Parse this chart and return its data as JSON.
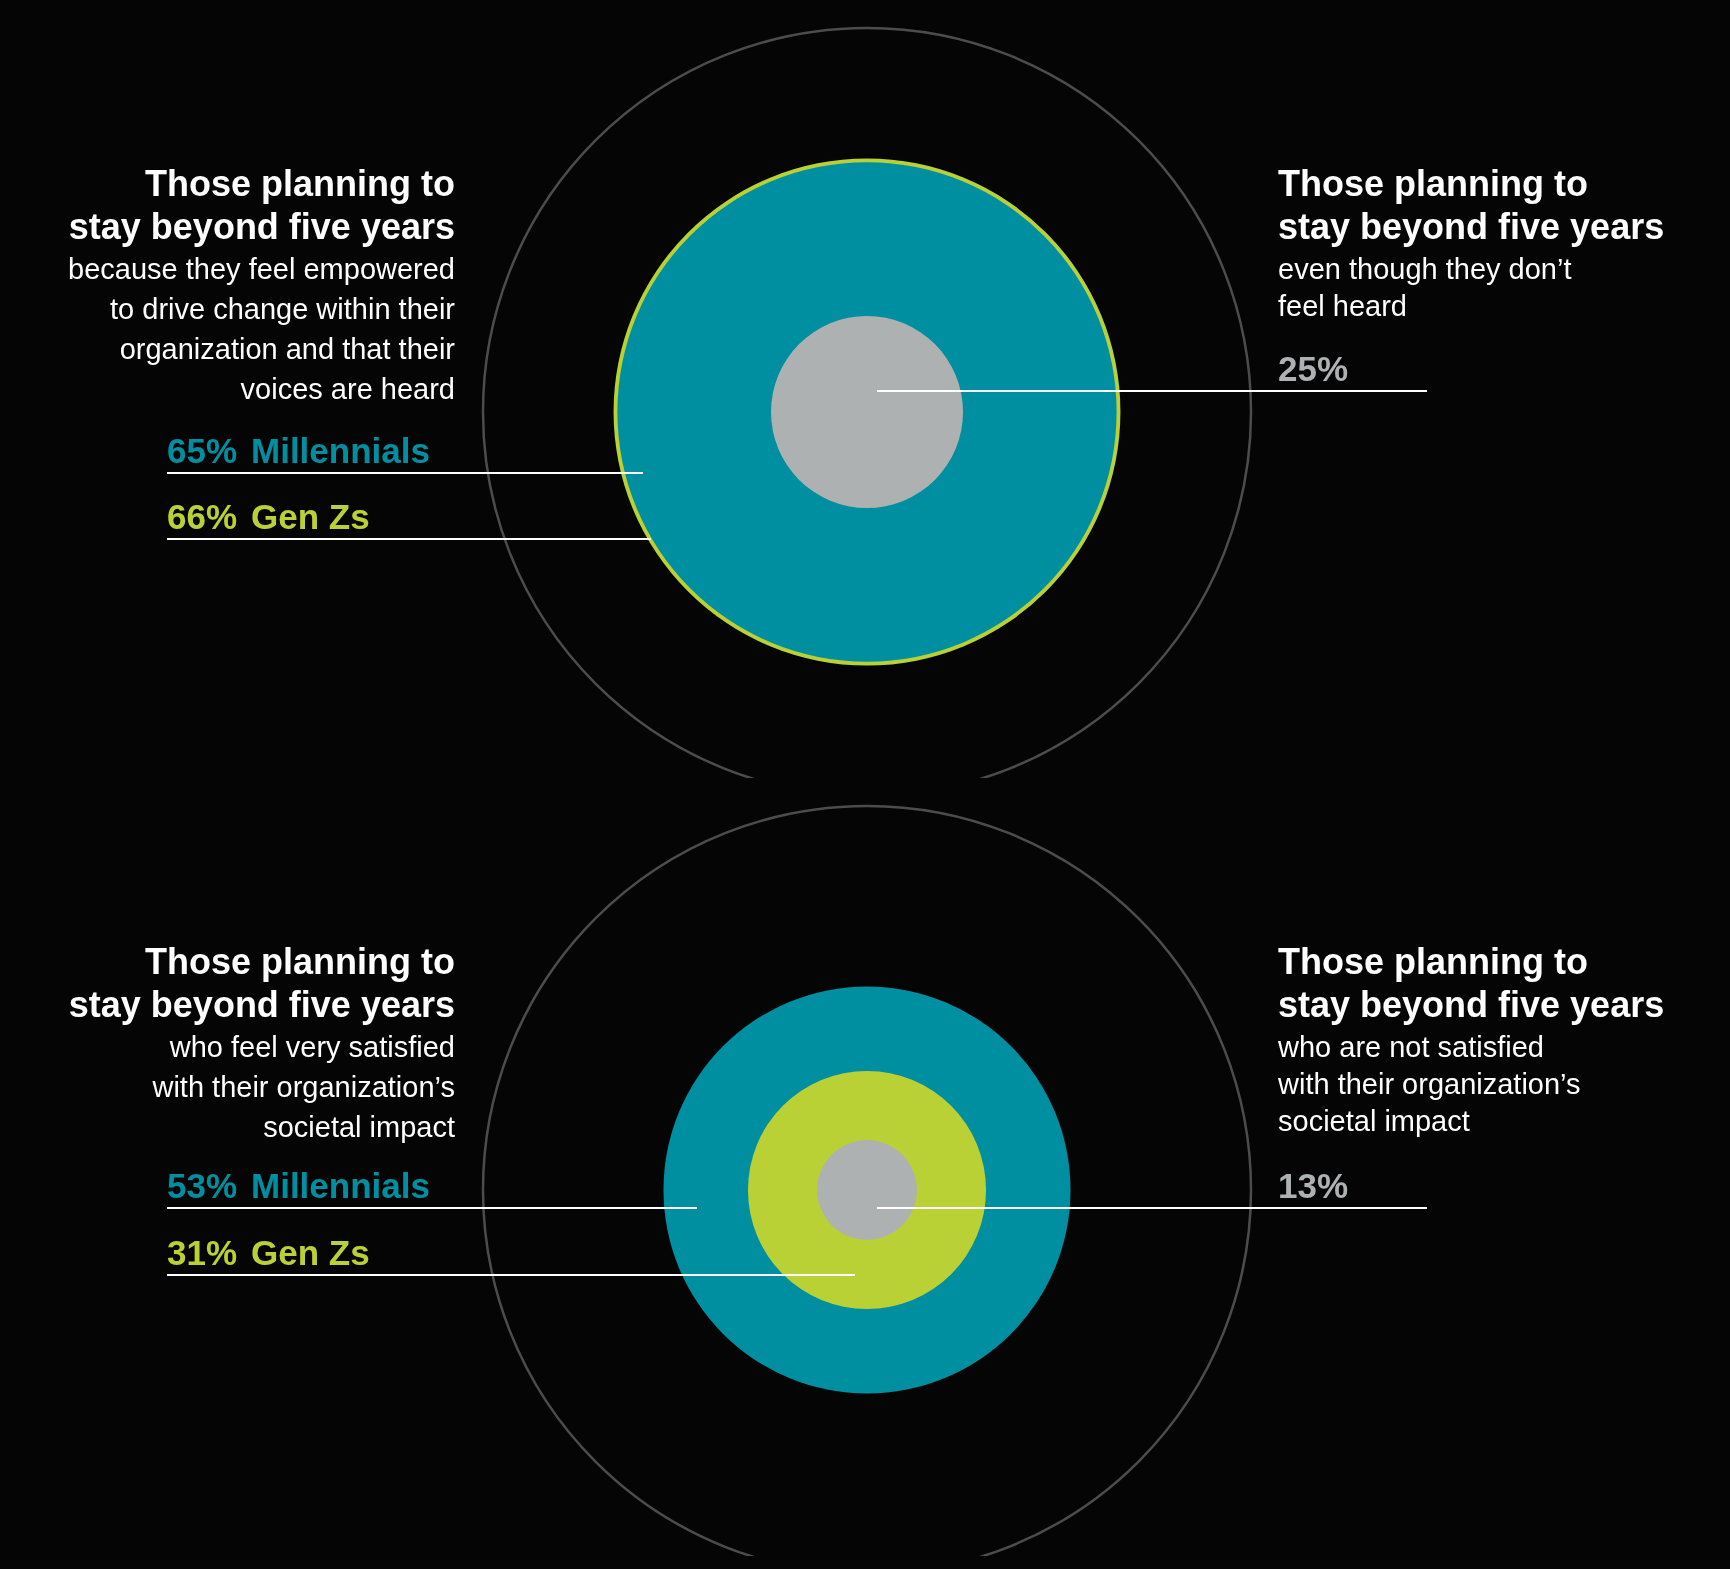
{
  "chart_data": [
    {
      "type": "other",
      "title": "Those planning to\nstay beyond five years",
      "subtitle": "because they feel empowered\nto drive change within their\norganization and that their\nvoices are heard",
      "annotations": [
        "even though they don’t\nfeel heard"
      ],
      "categories": [
        "Millennials",
        "Gen Zs",
        "Those planning to\nstay beyond five years"
      ],
      "values": [
        65,
        66,
        25
      ],
      "value_labels": [
        "65%",
        "66%",
        "25%"
      ],
      "colors": [
        "#008fa0",
        "#b9d134",
        "#aeb1b1"
      ]
    },
    {
      "type": "other",
      "title": "Those planning to\nstay beyond five years",
      "subtitle": "who feel very satisfied\nwith their organization’s\nsocietal impact",
      "annotations": [
        "who are not satisfied\nwith their organization’s\nsocietal impact"
      ],
      "categories": [
        "Millennials",
        "Gen Zs",
        "Those planning to\nstay beyond five years"
      ],
      "values": [
        53,
        31,
        13
      ],
      "value_labels": [
        "53%",
        "31%",
        "13%"
      ],
      "colors": [
        "#008fa0",
        "#b9d134",
        "#aeb1b1"
      ]
    }
  ]
}
